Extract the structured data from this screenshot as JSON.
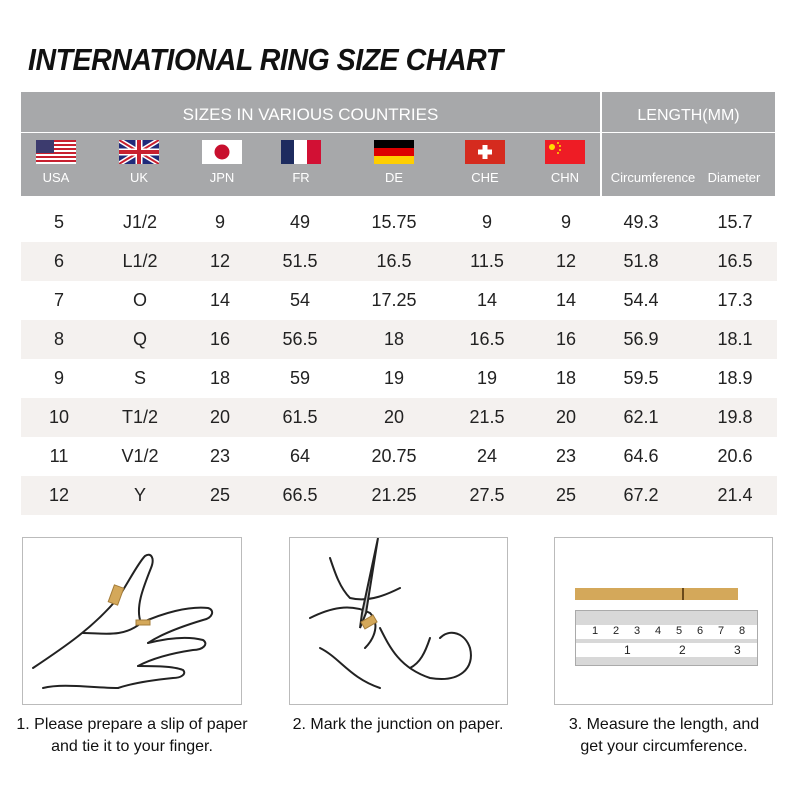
{
  "title": "INTERNATIONAL RING SIZE CHART",
  "header": {
    "sizes_label": "SIZES IN VARIOUS COUNTRIES",
    "length_label": "LENGTH(MM)"
  },
  "columns": [
    {
      "label": "USA",
      "flag": "usa-flag"
    },
    {
      "label": "UK",
      "flag": "uk-flag"
    },
    {
      "label": "JPN",
      "flag": "japan-flag"
    },
    {
      "label": "FR",
      "flag": "france-flag"
    },
    {
      "label": "DE",
      "flag": "germany-flag"
    },
    {
      "label": "CHE",
      "flag": "switzerland-flag"
    },
    {
      "label": "CHN",
      "flag": "china-flag"
    },
    {
      "label": "Circumference"
    },
    {
      "label": "Diameter"
    }
  ],
  "rows": [
    [
      "5",
      "J1/2",
      "9",
      "49",
      "15.75",
      "9",
      "9",
      "49.3",
      "15.7"
    ],
    [
      "6",
      "L1/2",
      "12",
      "51.5",
      "16.5",
      "11.5",
      "12",
      "51.8",
      "16.5"
    ],
    [
      "7",
      "O",
      "14",
      "54",
      "17.25",
      "14",
      "14",
      "54.4",
      "17.3"
    ],
    [
      "8",
      "Q",
      "16",
      "56.5",
      "18",
      "16.5",
      "16",
      "56.9",
      "18.1"
    ],
    [
      "9",
      "S",
      "18",
      "59",
      "19",
      "19",
      "18",
      "59.5",
      "18.9"
    ],
    [
      "10",
      "T1/2",
      "20",
      "61.5",
      "20",
      "21.5",
      "20",
      "62.1",
      "19.8"
    ],
    [
      "11",
      "V1/2",
      "23",
      "64",
      "20.75",
      "24",
      "23",
      "64.6",
      "20.6"
    ],
    [
      "12",
      "Y",
      "25",
      "66.5",
      "21.25",
      "27.5",
      "25",
      "67.2",
      "21.4"
    ]
  ],
  "steps": [
    {
      "line1": "1. Please prepare a slip of paper",
      "line2": "and tie it to your finger."
    },
    {
      "line1": "2. Mark the junction on paper.",
      "line2": ""
    },
    {
      "line1": "3. Measure the length, and",
      "line2": "get your circumference."
    }
  ],
  "ruler": {
    "top_ticks": [
      "1",
      "2",
      "3",
      "4",
      "5",
      "6",
      "7",
      "8"
    ],
    "bottom_ticks": [
      "1",
      "2",
      "3"
    ]
  },
  "colors": {
    "header_bg": "#a7a8aa",
    "alt_row": "#f4f1ef",
    "paper_strip": "#d4a85a"
  }
}
